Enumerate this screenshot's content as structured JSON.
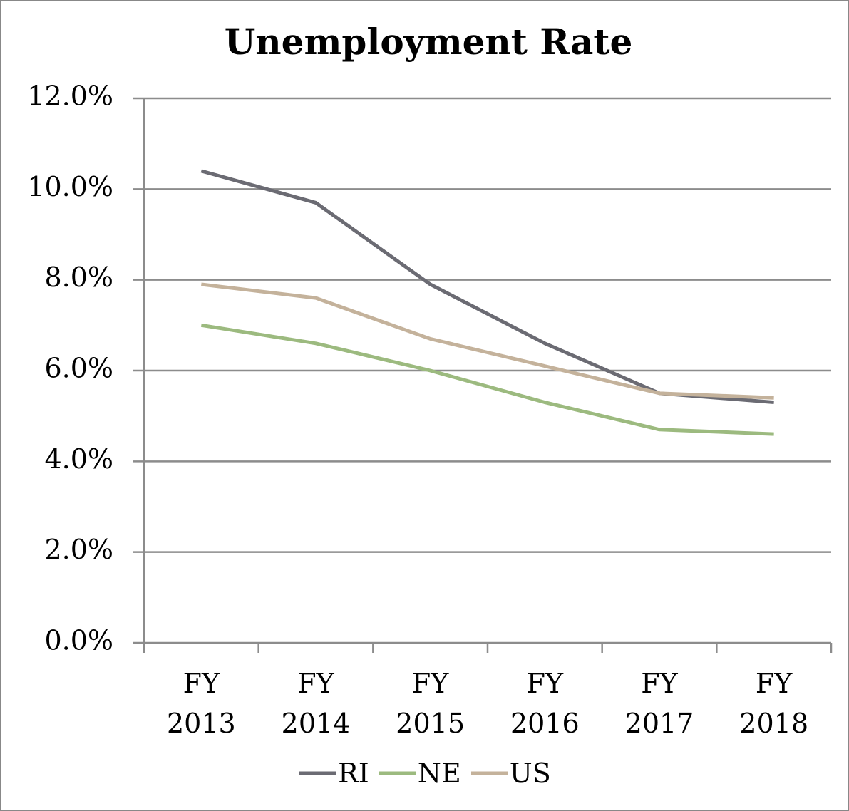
{
  "chart_data": {
    "type": "line",
    "title": "Unemployment Rate",
    "categories": [
      "FY 2013",
      "FY 2014",
      "FY 2015",
      "FY 2016",
      "FY 2017",
      "FY 2018"
    ],
    "series": [
      {
        "name": "RI",
        "color": "#6b6b73",
        "values": [
          10.4,
          9.7,
          7.9,
          6.6,
          5.5,
          5.3
        ]
      },
      {
        "name": "NE",
        "color": "#9cba7f",
        "values": [
          7.0,
          6.6,
          6.0,
          5.3,
          4.7,
          4.6
        ]
      },
      {
        "name": "US",
        "color": "#c4b29b",
        "values": [
          7.9,
          7.6,
          6.7,
          6.1,
          5.5,
          5.4
        ]
      }
    ],
    "ylim": [
      0,
      12
    ],
    "yticks": [
      {
        "value": 0,
        "label": "0.0%"
      },
      {
        "value": 2,
        "label": "2.0%"
      },
      {
        "value": 4,
        "label": "4.0%"
      },
      {
        "value": 6,
        "label": "6.0%"
      },
      {
        "value": 8,
        "label": "8.0%"
      },
      {
        "value": 10,
        "label": "10.0%"
      },
      {
        "value": 12,
        "label": "12.0%"
      }
    ],
    "grid": true,
    "legend": "bottom"
  }
}
